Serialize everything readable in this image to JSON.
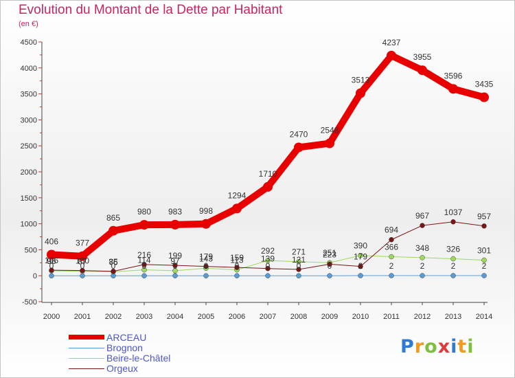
{
  "title": "Evolution du Montant de la Dette par Habitant",
  "subtitle": "(en €)",
  "logo": "Proxiti",
  "chart_data": {
    "type": "line",
    "title": "Evolution du Montant de la Dette par Habitant",
    "ylabel": "(en €)",
    "ylim": [
      -500,
      4500
    ],
    "ytick_step": 500,
    "grid": false,
    "legend_position": "bottom-left",
    "x": [
      2000,
      2001,
      2002,
      2003,
      2004,
      2005,
      2006,
      2007,
      2008,
      2009,
      2010,
      2011,
      2012,
      2013,
      2014
    ],
    "series": [
      {
        "name": "ARCEAU",
        "color": "#e80000",
        "values": [
          406,
          377,
          865,
          980,
          983,
          998,
          1294,
          1710,
          2470,
          2548,
          3513,
          4237,
          3955,
          3596,
          3435
        ],
        "labels": [
          "406",
          "377",
          "865",
          "980",
          "983",
          "998",
          "1294",
          "1710",
          "2470",
          "2548",
          "3513",
          "4237",
          "3955",
          "3596",
          "3435"
        ]
      },
      {
        "name": "Brognon",
        "color": "#5b9bd5",
        "values": [
          0,
          0,
          0,
          0,
          0,
          0,
          0,
          0,
          0,
          0,
          2,
          2,
          2,
          2,
          2
        ],
        "labels": [
          "0",
          "0",
          "0",
          "0",
          "0",
          "0",
          "0",
          "0",
          "0",
          "0",
          "2",
          "2",
          "2",
          "2",
          "2"
        ]
      },
      {
        "name": "Beire-le-Châtel",
        "color": "#9cd95c",
        "values": [
          96,
          87,
          76,
          114,
          97,
          143,
          113,
          292,
          271,
          251,
          390,
          366,
          348,
          326,
          301
        ],
        "labels": [
          "96",
          "87",
          "76",
          "114",
          "97",
          "143",
          "113",
          "292",
          "271",
          "251",
          "390",
          "366",
          "348",
          "326",
          "301"
        ]
      },
      {
        "name": "Orgeux",
        "color": "#7a1515",
        "values": [
          106,
          100,
          85,
          216,
          199,
          179,
          159,
          139,
          121,
          223,
          179,
          694,
          967,
          1037,
          957
        ],
        "labels": [
          "106",
          "100",
          "85",
          "216",
          "199",
          "179",
          "159",
          "139",
          "121",
          "223",
          "179",
          "694",
          "967",
          "1037",
          "957"
        ]
      }
    ]
  }
}
